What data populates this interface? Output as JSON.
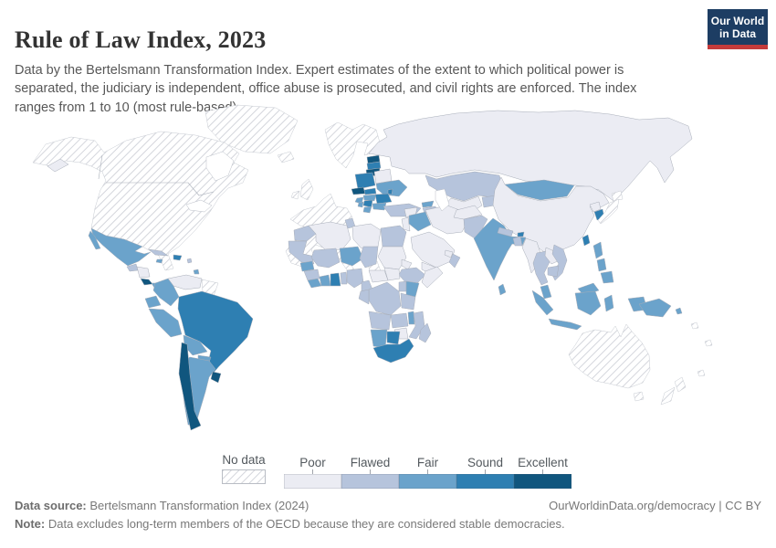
{
  "header": {
    "title": "Rule of Law Index, 2023",
    "subtitle": "Data by the Bertelsmann Transformation Index. Expert estimates of the extent to which political power is separated, the judiciary is independent, office abuse is prosecuted, and civil rights are enforced. The index ranges from 1 to 10 (most rule-based).",
    "logo": {
      "line1": "Our World",
      "line2": "in Data",
      "bg_color": "#1d3d63",
      "accent_color": "#c43b3b"
    }
  },
  "legend": {
    "no_data_label": "No data",
    "scale": [
      {
        "key": "poor",
        "label": "Poor",
        "color": "#ebecf3"
      },
      {
        "key": "flawed",
        "label": "Flawed",
        "color": "#b6c4dc"
      },
      {
        "key": "fair",
        "label": "Fair",
        "color": "#6ba3cb"
      },
      {
        "key": "sound",
        "label": "Sound",
        "color": "#2e7fb2"
      },
      {
        "key": "excellent",
        "label": "Excellent",
        "color": "#10567e"
      }
    ]
  },
  "footer": {
    "source_label": "Data source:",
    "source_text": "Bertelsmann Transformation Index (2024)",
    "right_text": "OurWorldinData.org/democracy | CC BY",
    "note_label": "Note:",
    "note_text": "Data excludes long-term members of the OECD because they are considered stable democracies."
  },
  "chart_data": {
    "type": "choropleth",
    "title": "Rule of Law Index, 2023",
    "index_range": [
      1,
      10
    ],
    "categories": [
      "No data",
      "Poor",
      "Flawed",
      "Fair",
      "Sound",
      "Excellent"
    ],
    "regions": {
      "greenland": "no_data",
      "north-america": "no_data",
      "guyanas": "no_data",
      "iceland": "no_data",
      "uk": "no_data",
      "ireland": "no_data",
      "scandinavia": "no_data",
      "west-europe": "no_data",
      "greece": "no_data",
      "japan-hokkaido": "no_data",
      "japan-honshu": "no_data",
      "australia": "no_data",
      "tasmania": "no_data",
      "new-zealand-north": "no_data",
      "new-zealand-south": "no_data",
      "pacific-islands-1": "no_data",
      "pacific-islands-2": "no_data",
      "pacific-islands-3": "no_data",
      "russia": "poor",
      "russia-east-fragment": "poor",
      "belarus": "poor",
      "china": "poor",
      "north-korea": "poor",
      "venezuela": "poor",
      "honduras-nicaragua": "poor",
      "algeria": "poor",
      "libya": "poor",
      "sudan": "poor",
      "south-sudan": "poor",
      "central-african-republic": "poor",
      "eritrea": "poor",
      "somalia": "poor",
      "zimbabwe": "poor",
      "syria": "poor",
      "israel-jordan": "poor",
      "saudi-arabia": "poor",
      "yemen": "poor",
      "uae": "poor",
      "iran": "poor",
      "afghanistan": "poor",
      "laos": "poor",
      "myanmar": "poor",
      "uzbekistan-turkmenistan": "poor",
      "guatemala": "flawed",
      "cuba": "flawed",
      "lesser-antilles": "flawed",
      "morocco": "flawed",
      "western-sahara-mauritania": "flawed",
      "tunisia": "flawed",
      "egypt": "flawed",
      "mali": "flawed",
      "chad": "flawed",
      "ethiopia": "flawed",
      "guinea": "flawed",
      "togo-benin": "flawed",
      "nigeria": "flawed",
      "cameroon": "flawed",
      "uganda": "flawed",
      "drc": "flawed",
      "gabon-congo": "flawed",
      "tanzania": "flawed",
      "angola": "flawed",
      "zambia": "flawed",
      "mozambique": "flawed",
      "madagascar": "flawed",
      "turkey": "flawed",
      "armenia-azerbaijan": "flawed",
      "kazakhstan": "flawed",
      "kyrgyzstan-tajikistan": "flawed",
      "pakistan": "flawed",
      "nepal": "flawed",
      "bangladesh": "flawed",
      "thailand": "flawed",
      "vietnam": "flawed",
      "cambodia": "flawed",
      "oman": "flawed",
      "mexico": "fair",
      "baja-california": "fair",
      "panama": "fair",
      "jamaica": "fair",
      "trinidad": "fair",
      "colombia": "fair",
      "ecuador": "fair",
      "peru": "fair",
      "bolivia": "fair",
      "paraguay": "fair",
      "argentina": "fair",
      "ukraine": "fair",
      "hungary": "fair",
      "croatia": "fair",
      "bosnia": "fair",
      "albania-macedonia": "fair",
      "bulgaria": "fair",
      "georgia": "fair",
      "mongolia": "fair",
      "india": "fair",
      "sri-lanka": "fair",
      "iraq": "fair",
      "senegal": "fair",
      "niger": "fair",
      "ivory-coast": "fair",
      "sierra-leone-liberia": "fair",
      "kenya": "fair",
      "malawi": "fair",
      "namibia": "fair",
      "malaysia-peninsula": "fair",
      "malaysia-borneo": "fair",
      "indonesia-sumatra": "fair",
      "indonesia-java": "fair",
      "indonesia-borneo": "fair",
      "indonesia-sulawesi": "fair",
      "indonesia-papua": "fair",
      "philippines-luzon": "fair",
      "philippines-visayas": "fair",
      "philippines-mindanao": "fair",
      "papua-new-guinea": "fair",
      "solomon-islands": "fair",
      "brazil": "sound",
      "hispaniola": "sound",
      "poland": "sound",
      "latvia": "sound",
      "slovakia": "sound",
      "romania": "sound",
      "moldova": "sound",
      "serbia": "sound",
      "south-korea": "sound",
      "taiwan": "sound",
      "bhutan": "sound",
      "ghana": "sound",
      "botswana": "sound",
      "south-africa": "sound",
      "chile": "excellent",
      "uruguay": "excellent",
      "costa-rica": "excellent",
      "estonia": "excellent",
      "lithuania": "excellent",
      "czechia": "excellent"
    }
  }
}
